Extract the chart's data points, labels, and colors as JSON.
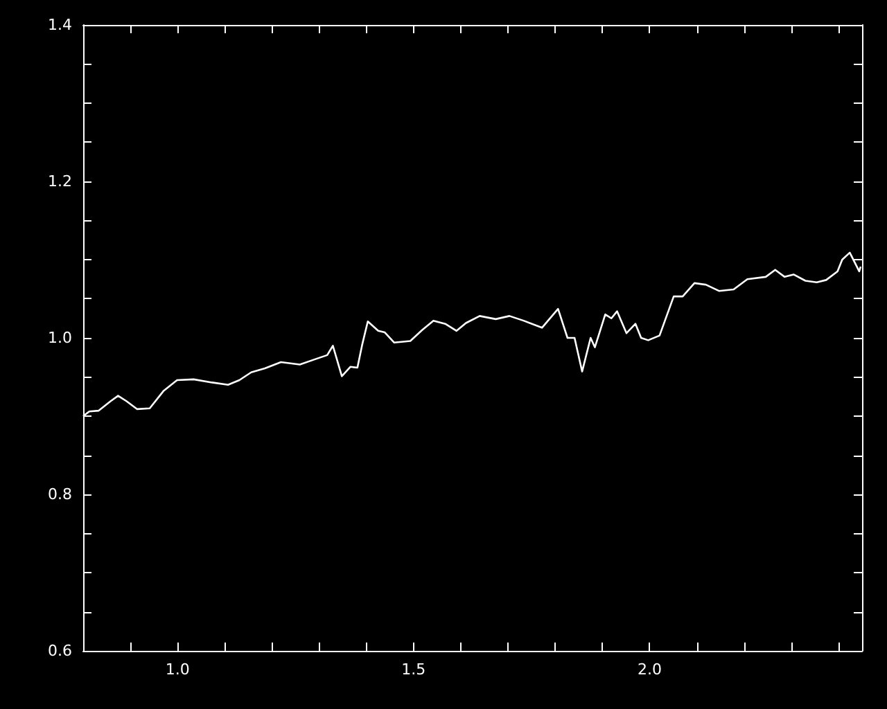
{
  "chart_data": {
    "type": "line",
    "marker": "none",
    "line_style": "solid",
    "xlim": [
      0.8,
      2.45
    ],
    "xticks": [
      {
        "value": 0.9,
        "label": null
      },
      {
        "value": 1.0,
        "label": "1.0"
      },
      {
        "value": 1.1,
        "label": null
      },
      {
        "value": 1.2,
        "label": null
      },
      {
        "value": 1.3,
        "label": null
      },
      {
        "value": 1.4,
        "label": null
      },
      {
        "value": 1.5,
        "label": "1.5"
      },
      {
        "value": 1.6,
        "label": null
      },
      {
        "value": 1.7,
        "label": null
      },
      {
        "value": 1.8,
        "label": null
      },
      {
        "value": 1.9,
        "label": null
      },
      {
        "value": 2.0,
        "label": "2.0"
      },
      {
        "value": 2.1,
        "label": null
      },
      {
        "value": 2.2,
        "label": null
      },
      {
        "value": 2.3,
        "label": null
      },
      {
        "value": 2.4,
        "label": null
      }
    ],
    "ylim": [
      0.6,
      1.4
    ],
    "yticks": [
      0.6,
      {
        "value": 0.65,
        "label": null
      },
      {
        "value": 0.7,
        "label": null
      },
      {
        "value": 0.75,
        "label": null
      },
      0.8,
      {
        "value": 0.85,
        "label": null
      },
      {
        "value": 0.9,
        "label": null
      },
      {
        "value": 0.95,
        "label": null
      },
      {
        "value": 1.0,
        "label": "1.0"
      },
      {
        "value": 1.05,
        "label": null
      },
      {
        "value": 1.1,
        "label": null
      },
      {
        "value": 1.15,
        "label": null
      },
      1.2,
      {
        "value": 1.25,
        "label": null
      },
      {
        "value": 1.3,
        "label": null
      },
      {
        "value": 1.35,
        "label": null
      },
      1.4
    ],
    "series": [
      {
        "color": "#ffffff",
        "x": [
          0.8,
          0.813,
          0.833,
          0.858,
          0.874,
          0.892,
          0.914,
          0.941,
          0.97,
          0.999,
          1.034,
          1.073,
          1.107,
          1.131,
          1.156,
          1.185,
          1.219,
          1.259,
          1.288,
          1.317,
          1.329,
          1.348,
          1.366,
          1.381,
          1.391,
          1.403,
          1.425,
          1.439,
          1.459,
          1.493,
          1.518,
          1.542,
          1.567,
          1.591,
          1.611,
          1.64,
          1.674,
          1.703,
          1.733,
          1.772,
          1.806,
          1.826,
          1.841,
          1.857,
          1.875,
          1.884,
          1.906,
          1.919,
          1.931,
          1.951,
          1.97,
          1.982,
          1.997,
          2.021,
          2.051,
          2.07,
          2.095,
          2.119,
          2.147,
          2.178,
          2.207,
          2.246,
          2.266,
          2.286,
          2.305,
          2.33,
          2.354,
          2.374,
          2.398,
          2.408,
          2.424,
          2.444,
          2.447
        ],
        "values": [
          0.9,
          0.906,
          0.907,
          0.919,
          0.926,
          0.919,
          0.909,
          0.91,
          0.932,
          0.946,
          0.947,
          0.943,
          0.94,
          0.946,
          0.956,
          0.961,
          0.969,
          0.966,
          0.972,
          0.978,
          0.99,
          0.951,
          0.963,
          0.962,
          0.991,
          1.021,
          1.009,
          1.007,
          0.994,
          0.996,
          1.01,
          1.022,
          1.018,
          1.009,
          1.019,
          1.028,
          1.024,
          1.028,
          1.022,
          1.013,
          1.037,
          1.0,
          1.0,
          0.957,
          1.0,
          0.988,
          1.03,
          1.025,
          1.034,
          1.006,
          1.018,
          1.0,
          0.997,
          1.003,
          1.053,
          1.053,
          1.07,
          1.068,
          1.06,
          1.062,
          1.075,
          1.078,
          1.087,
          1.078,
          1.081,
          1.073,
          1.071,
          1.074,
          1.085,
          1.1,
          1.109,
          1.085,
          1.091
        ]
      }
    ]
  }
}
